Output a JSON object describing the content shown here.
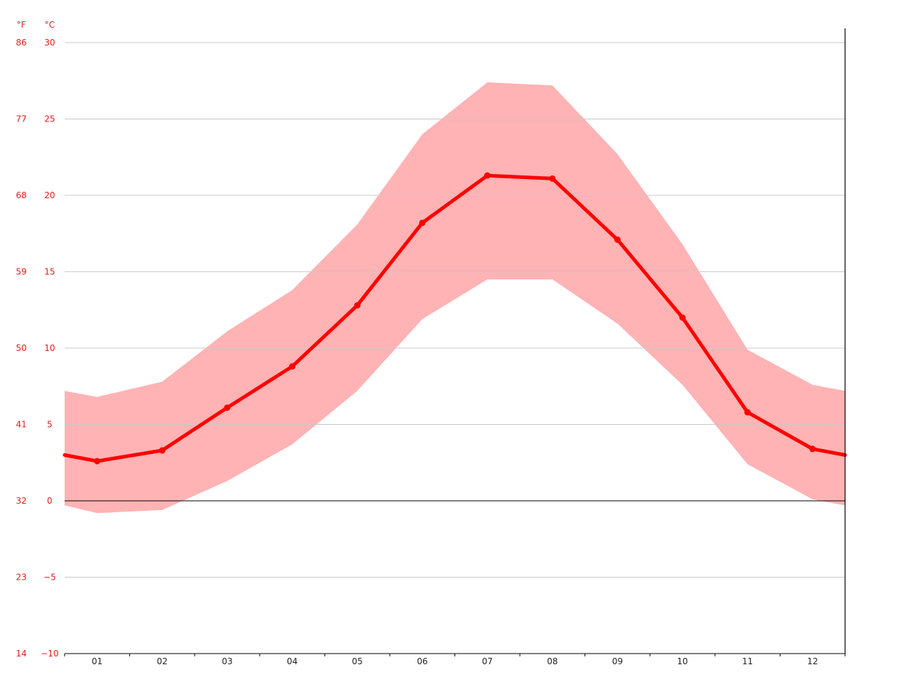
{
  "chart_data": {
    "type": "area",
    "categories": [
      "01",
      "02",
      "03",
      "04",
      "05",
      "06",
      "07",
      "08",
      "09",
      "10",
      "11",
      "12"
    ],
    "unit_labels": {
      "fahrenheit": "°F",
      "celsius": "°C"
    },
    "y_ticks_celsius": [
      "30",
      "25",
      "20",
      "15",
      "10",
      "5",
      "0",
      "−5",
      "−10"
    ],
    "y_ticks_fahrenheit": [
      "86",
      "77",
      "68",
      "59",
      "50",
      "41",
      "32",
      "23",
      "14"
    ],
    "ylim": [
      -10,
      30
    ],
    "grid": true,
    "series": [
      {
        "role": "mean",
        "values": [
          2.6,
          3.3,
          6.1,
          8.8,
          12.8,
          18.2,
          21.3,
          21.1,
          17.1,
          12.0,
          5.8,
          3.4
        ],
        "edge_start": 3.0,
        "edge_end": 3.0
      },
      {
        "role": "max",
        "values": [
          6.8,
          7.8,
          11.1,
          13.8,
          18.1,
          24.0,
          27.4,
          27.2,
          22.7,
          16.8,
          9.9,
          7.6
        ],
        "edge_start": 7.2,
        "edge_end": 7.2
      },
      {
        "role": "min",
        "values": [
          -0.8,
          -0.6,
          1.3,
          3.7,
          7.2,
          11.9,
          14.5,
          14.5,
          11.6,
          7.6,
          2.4,
          0.1
        ],
        "edge_start": -0.3,
        "edge_end": -0.3
      }
    ],
    "colors": {
      "mean": "#ff0000",
      "band": "#ffb3b4",
      "grid": "#c8c8c8",
      "axis": "#000000",
      "tick_red": "#e8191c"
    }
  }
}
